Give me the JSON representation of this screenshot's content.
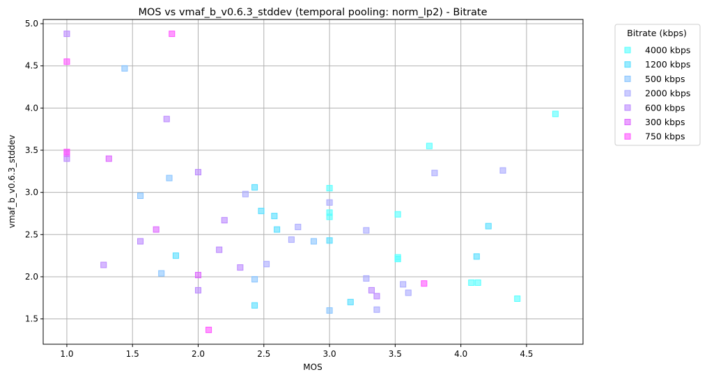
{
  "chart_data": {
    "type": "scatter",
    "title": "MOS vs vmaf_b_v0.6.3_stddev (temporal pooling: norm_lp2) - Bitrate",
    "xlabel": "MOS",
    "ylabel": "vmaf_b_v0.6.3_stddev",
    "xlim": [
      0.82,
      4.93
    ],
    "ylim": [
      1.2,
      5.05
    ],
    "xticks": [
      1.0,
      1.5,
      2.0,
      2.5,
      3.0,
      3.5,
      4.0,
      4.5
    ],
    "xtick_labels": [
      "1.0",
      "1.5",
      "2.0",
      "2.5",
      "3.0",
      "3.5",
      "4.0",
      "4.5"
    ],
    "yticks": [
      1.5,
      2.0,
      2.5,
      3.0,
      3.5,
      4.0,
      4.5,
      5.0
    ],
    "ytick_labels": [
      "1.5",
      "2.0",
      "2.5",
      "3.0",
      "3.5",
      "4.0",
      "4.5",
      "5.0"
    ],
    "grid": true,
    "legend_title": "Bitrate (kbps)",
    "legend_position": "outside-top-right",
    "marker": "square",
    "series": [
      {
        "name": "4000 kbps",
        "color": "#55ffff",
        "points": [
          [
            3.76,
            3.55
          ],
          [
            4.72,
            3.93
          ],
          [
            3.0,
            3.05
          ],
          [
            3.0,
            2.76
          ],
          [
            3.0,
            2.71
          ],
          [
            3.52,
            2.74
          ],
          [
            3.52,
            2.23
          ],
          [
            3.52,
            2.21
          ],
          [
            4.08,
            1.93
          ],
          [
            4.13,
            1.93
          ],
          [
            4.43,
            1.74
          ]
        ]
      },
      {
        "name": "1200 kbps",
        "color": "#55ddff",
        "points": [
          [
            2.43,
            3.06
          ],
          [
            2.48,
            2.78
          ],
          [
            2.58,
            2.72
          ],
          [
            2.6,
            2.56
          ],
          [
            3.0,
            2.43
          ],
          [
            4.21,
            2.6
          ],
          [
            4.12,
            2.24
          ],
          [
            1.83,
            2.25
          ],
          [
            2.43,
            1.66
          ],
          [
            3.16,
            1.7
          ]
        ]
      },
      {
        "name": "500 kbps",
        "color": "#88c4ff",
        "points": [
          [
            1.44,
            4.47
          ],
          [
            1.78,
            3.17
          ],
          [
            1.56,
            2.96
          ],
          [
            1.72,
            2.04
          ],
          [
            2.43,
            1.97
          ],
          [
            2.88,
            2.42
          ],
          [
            3.0,
            1.6
          ]
        ]
      },
      {
        "name": "2000 kbps",
        "color": "#aaaaff",
        "points": [
          [
            3.8,
            3.23
          ],
          [
            4.32,
            3.26
          ],
          [
            2.36,
            2.98
          ],
          [
            3.0,
            2.88
          ],
          [
            2.76,
            2.59
          ],
          [
            2.71,
            2.44
          ],
          [
            3.28,
            2.55
          ],
          [
            2.52,
            2.15
          ],
          [
            3.28,
            1.98
          ],
          [
            3.56,
            1.91
          ],
          [
            3.6,
            1.81
          ],
          [
            3.36,
            1.61
          ]
        ]
      },
      {
        "name": "600 kbps",
        "color": "#bb88ff",
        "points": [
          [
            1.0,
            4.88
          ],
          [
            1.76,
            3.87
          ],
          [
            1.0,
            3.4
          ],
          [
            2.0,
            3.24
          ],
          [
            2.2,
            2.67
          ],
          [
            1.56,
            2.42
          ],
          [
            2.16,
            2.32
          ],
          [
            1.28,
            2.14
          ],
          [
            2.32,
            2.11
          ],
          [
            2.0,
            1.84
          ],
          [
            3.32,
            1.84
          ],
          [
            3.36,
            1.77
          ]
        ]
      },
      {
        "name": "300 kbps",
        "color": "#dd66ff",
        "points": [
          [
            1.32,
            3.4
          ],
          [
            1.68,
            2.56
          ],
          [
            2.0,
            2.02
          ],
          [
            1.0,
            3.46
          ]
        ]
      },
      {
        "name": "750 kbps",
        "color": "#ff55ff",
        "points": [
          [
            1.0,
            4.55
          ],
          [
            1.8,
            4.88
          ],
          [
            1.0,
            3.48
          ],
          [
            3.72,
            1.92
          ],
          [
            2.08,
            1.37
          ]
        ]
      }
    ]
  }
}
